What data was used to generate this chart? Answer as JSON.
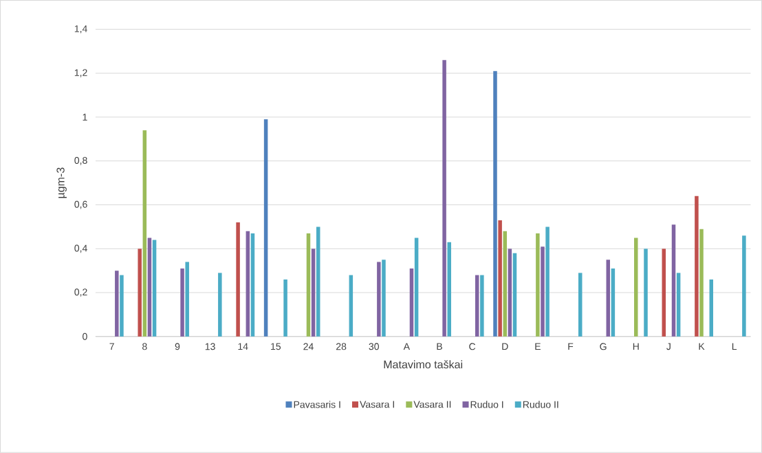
{
  "chart_data": {
    "type": "bar",
    "categories": [
      "7",
      "8",
      "9",
      "13",
      "14",
      "15",
      "24",
      "28",
      "30",
      "A",
      "B",
      "C",
      "D",
      "E",
      "F",
      "G",
      "H",
      "J",
      "K",
      "L"
    ],
    "series": [
      {
        "name": "Pavasaris I",
        "color": "#4f81bd",
        "values": [
          null,
          null,
          null,
          null,
          null,
          0.99,
          null,
          null,
          null,
          null,
          null,
          null,
          1.21,
          null,
          null,
          null,
          null,
          null,
          null,
          null
        ]
      },
      {
        "name": "Vasara I",
        "color": "#c0504d",
        "values": [
          null,
          0.4,
          null,
          null,
          0.52,
          null,
          null,
          null,
          null,
          null,
          null,
          null,
          0.53,
          null,
          null,
          null,
          null,
          0.4,
          0.64,
          null
        ]
      },
      {
        "name": "Vasara II",
        "color": "#9bbb59",
        "values": [
          null,
          0.94,
          null,
          null,
          null,
          null,
          0.47,
          null,
          null,
          null,
          null,
          null,
          0.48,
          0.47,
          null,
          null,
          0.45,
          null,
          0.49,
          null
        ]
      },
      {
        "name": "Ruduo I",
        "color": "#8064a2",
        "values": [
          0.3,
          0.45,
          0.31,
          null,
          0.48,
          null,
          0.4,
          null,
          0.34,
          0.31,
          1.26,
          0.28,
          0.4,
          0.41,
          null,
          0.35,
          null,
          0.51,
          null,
          null
        ]
      },
      {
        "name": "Ruduo II",
        "color": "#4bacc6",
        "values": [
          0.28,
          0.44,
          0.34,
          0.29,
          0.47,
          0.26,
          0.5,
          0.28,
          0.35,
          0.45,
          0.43,
          0.28,
          0.38,
          0.5,
          0.29,
          0.31,
          0.4,
          0.29,
          0.26,
          0.46
        ]
      }
    ],
    "xlabel": "Matavimo taškai",
    "ylabel": "µgm-3",
    "ylim": [
      0,
      1.4
    ],
    "yticks": [
      0,
      {
        "value": 0.2,
        "label": "0,2"
      },
      {
        "value": 0.4,
        "label": "0,4"
      },
      {
        "value": 0.6,
        "label": "0,6"
      },
      {
        "value": 0.8,
        "label": "0,8"
      },
      1,
      {
        "value": 1.2,
        "label": "1,2"
      },
      {
        "value": 1.4,
        "label": "1,4"
      }
    ],
    "grid": "y",
    "legend": "bottom"
  }
}
